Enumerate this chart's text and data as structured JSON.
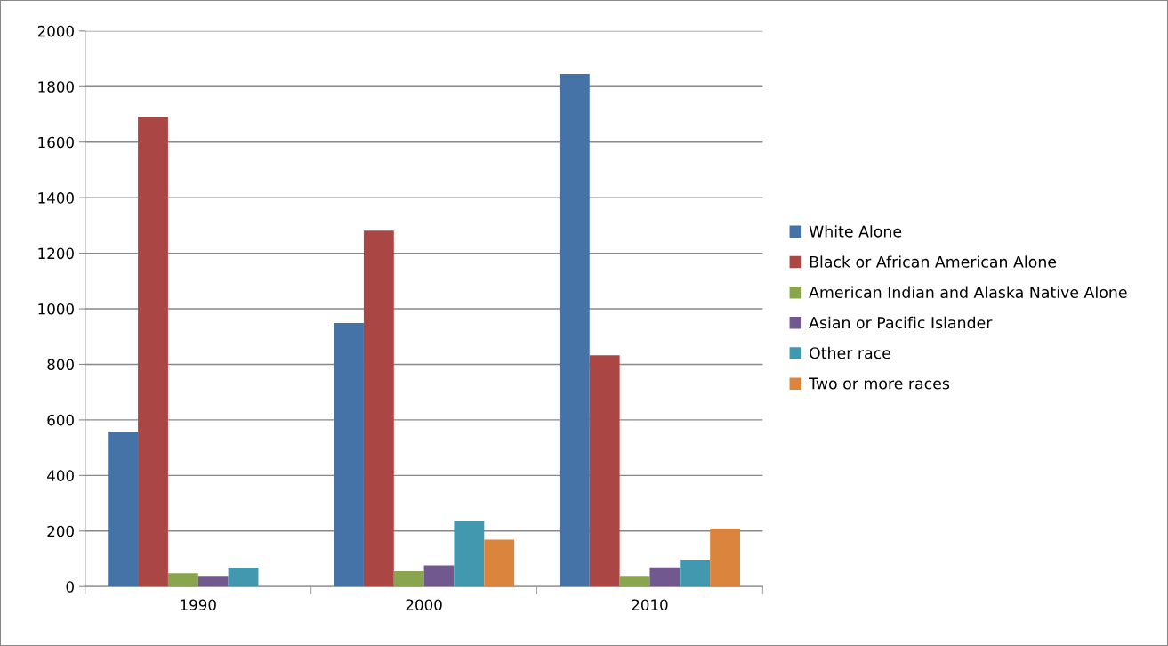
{
  "chart_data": {
    "type": "bar",
    "categories": [
      "1990",
      "2000",
      "2010"
    ],
    "series": [
      {
        "name": "White Alone",
        "color": "#4572a7",
        "values": [
          558,
          949,
          1846
        ]
      },
      {
        "name": "Black or African American Alone",
        "color": "#aa4643",
        "values": [
          1691,
          1281,
          833
        ]
      },
      {
        "name": "American Indian and Alaska Native Alone",
        "color": "#89a54e",
        "values": [
          48,
          55,
          38
        ]
      },
      {
        "name": "Asian or Pacific Islander",
        "color": "#71588f",
        "values": [
          38,
          76,
          69
        ]
      },
      {
        "name": "Other race",
        "color": "#4198af",
        "values": [
          68,
          237,
          97
        ]
      },
      {
        "name": "Two or more races",
        "color": "#db843d",
        "values": [
          null,
          169,
          209
        ]
      }
    ],
    "ylim": [
      0,
      2000
    ],
    "yticks": [
      0,
      200,
      400,
      600,
      800,
      1000,
      1200,
      1400,
      1600,
      1800,
      2000
    ],
    "grid": "y",
    "legend": "right"
  }
}
